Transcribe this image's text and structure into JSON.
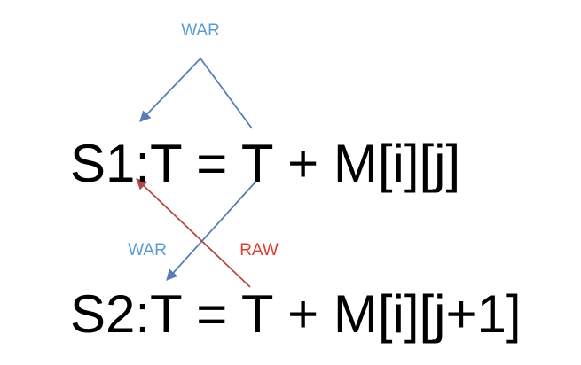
{
  "statements": {
    "s1": "S1:T = T + M[i][j]",
    "s2": "S2:T = T + M[i][j+1]"
  },
  "dependencies": [
    {
      "label": "WAR",
      "color": "#5b9bd5"
    },
    {
      "label": "WAR",
      "color": "#5b9bd5"
    },
    {
      "label": "RAW",
      "color": "#e03c31"
    }
  ],
  "colors": {
    "war_arrow": "#5b7bb5",
    "raw_arrow": "#b24a48",
    "war_label": "#5b9bd5",
    "raw_label": "#e03c31",
    "text": "#000000"
  }
}
